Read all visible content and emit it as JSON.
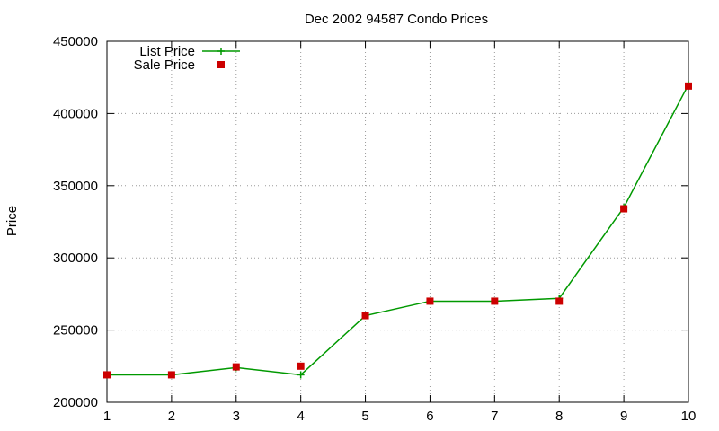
{
  "chart_data": {
    "type": "line",
    "title": "Dec 2002 94587 Condo Prices",
    "xlabel": "",
    "ylabel": "Price",
    "xlim": [
      1,
      10
    ],
    "ylim": [
      200000,
      450000
    ],
    "x_ticks": [
      "1",
      "2",
      "3",
      "4",
      "5",
      "6",
      "7",
      "8",
      "9",
      "10"
    ],
    "y_ticks": [
      "200000",
      "250000",
      "300000",
      "350000",
      "400000",
      "450000"
    ],
    "grid": true,
    "legend_position": "top-left",
    "x": [
      1,
      2,
      3,
      4,
      5,
      6,
      7,
      8,
      9,
      10
    ],
    "series": [
      {
        "name": "List Price",
        "style": "line-with-plus-markers",
        "color": "#009900",
        "values": [
          219000,
          219000,
          224000,
          219000,
          260000,
          270000,
          270000,
          272000,
          335000,
          420000
        ]
      },
      {
        "name": "Sale Price",
        "style": "square-markers",
        "color": "#cc0000",
        "values": [
          219000,
          219000,
          224500,
          225000,
          260000,
          270000,
          270000,
          270000,
          334000,
          419000
        ]
      }
    ]
  }
}
